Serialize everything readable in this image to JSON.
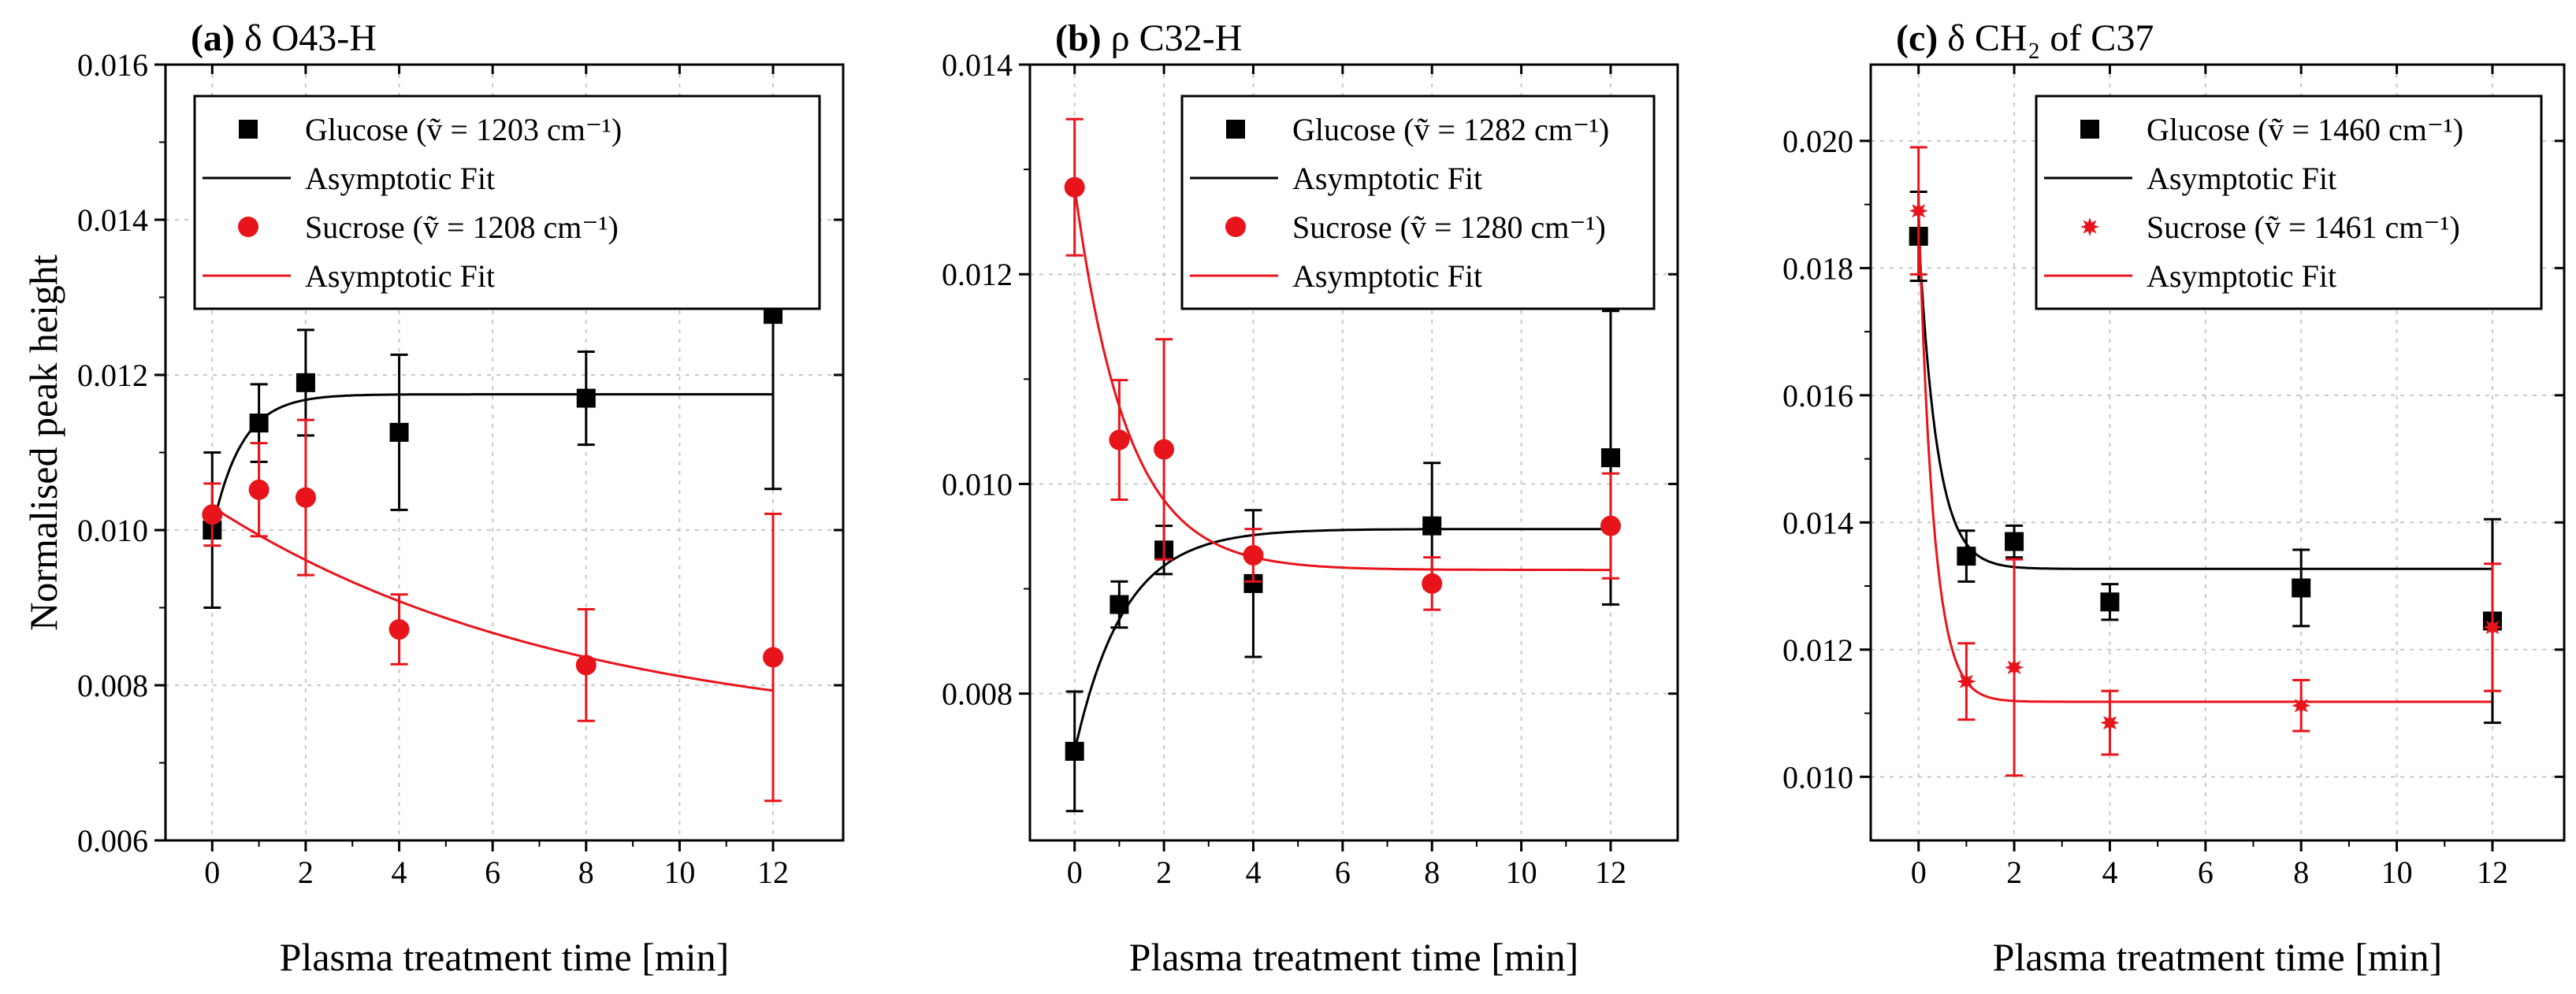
{
  "figure": {
    "ylabel": "Normalised peak height"
  },
  "chart_data": [
    {
      "type": "scatter",
      "panel": "a",
      "title_letter": "(a)",
      "title_rest": "δ O43-H",
      "xlabel": "Plasma treatment time [min]",
      "ylabel": "Normalised peak height",
      "xlim": [
        -1,
        13.5
      ],
      "ylim": [
        0.006,
        0.016
      ],
      "xticks": [
        0,
        2,
        4,
        6,
        8,
        10,
        12
      ],
      "yticks": [
        0.006,
        0.008,
        0.01,
        0.012,
        0.014,
        0.016
      ],
      "ytick_labels": [
        "0.006",
        "0.008",
        "0.010",
        "0.012",
        "0.014",
        "0.016"
      ],
      "legend_position": "top-right",
      "series": [
        {
          "name": "Glucose",
          "legend_label": "Glucose (ṽ = 1203 cm⁻¹)",
          "marker": "square",
          "color": "#000000",
          "x": [
            0,
            1,
            2,
            4,
            8,
            12
          ],
          "y": [
            0.01,
            0.01138,
            0.0119,
            0.01126,
            0.0117,
            0.01278
          ],
          "err": [
            0.001,
            0.0005,
            0.00068,
            0.001,
            0.0006,
            0.00225
          ]
        },
        {
          "name": "Sucrose",
          "legend_label": "Sucrose (ṽ = 1208 cm⁻¹)",
          "marker": "circle",
          "color": "#e8141b",
          "x": [
            0,
            1,
            2,
            4,
            8,
            12
          ],
          "y": [
            0.0102,
            0.01052,
            0.01042,
            0.00872,
            0.00826,
            0.00836
          ],
          "err": [
            0.0004,
            0.0006,
            0.001,
            0.00045,
            0.00072,
            0.00185
          ]
        }
      ],
      "fits": [
        {
          "name": "Asymptotic Fit",
          "legend_label": "Asymptotic Fit",
          "color": "#000000",
          "model": "a - b*exp(-k*x)",
          "a": 0.01175,
          "b": 0.00175,
          "k": 1.6
        },
        {
          "name": "Asymptotic Fit",
          "legend_label": "Asymptotic Fit",
          "color": "#e8141b",
          "model": "a - b*exp(-k*x)",
          "a": 0.0073,
          "b": -0.003,
          "k": 0.13
        }
      ]
    },
    {
      "type": "scatter",
      "panel": "b",
      "title_letter": "(b)",
      "title_rest": "ρ C32-H",
      "xlabel": "Plasma treatment time [min]",
      "ylabel": "",
      "xlim": [
        -1,
        13.5
      ],
      "ylim": [
        0.0066,
        0.014
      ],
      "xticks": [
        0,
        2,
        4,
        6,
        8,
        10,
        12
      ],
      "yticks": [
        0.008,
        0.01,
        0.012,
        0.014
      ],
      "ytick_labels": [
        "0.008",
        "0.010",
        "0.012",
        "0.014"
      ],
      "legend_position": "top-right",
      "series": [
        {
          "name": "Glucose",
          "legend_label": "Glucose (ṽ = 1282 cm⁻¹)",
          "marker": "square",
          "color": "#000000",
          "x": [
            0,
            1,
            2,
            4,
            8,
            12
          ],
          "y": [
            0.00745,
            0.00885,
            0.00937,
            0.00905,
            0.0096,
            0.01025
          ],
          "err": [
            0.00057,
            0.00022,
            0.00023,
            0.0007,
            0.0006,
            0.0014
          ]
        },
        {
          "name": "Sucrose",
          "legend_label": "Sucrose (ṽ = 1280 cm⁻¹)",
          "marker": "circle",
          "color": "#e8141b",
          "x": [
            0,
            1,
            2,
            4,
            8,
            12
          ],
          "y": [
            0.01283,
            0.01042,
            0.01033,
            0.00932,
            0.00905,
            0.0096
          ],
          "err": [
            0.00065,
            0.00057,
            0.00105,
            0.00025,
            0.00025,
            0.0005
          ]
        }
      ],
      "fits": [
        {
          "name": "Asymptotic Fit",
          "legend_label": "Asymptotic Fit",
          "color": "#000000",
          "model": "a - b*exp(-k*x)",
          "a": 0.00957,
          "b": 0.00212,
          "k": 0.9
        },
        {
          "name": "Asymptotic Fit",
          "legend_label": "Asymptotic Fit",
          "color": "#e8141b",
          "model": "a - b*exp(-k*x)",
          "a": 0.00918,
          "b": -0.00365,
          "k": 0.85
        }
      ]
    },
    {
      "type": "scatter",
      "panel": "c",
      "title_letter": "(c)",
      "title_rest": "δ CH₂ of C37",
      "xlabel": "Plasma treatment time [min]",
      "ylabel": "",
      "xlim": [
        -1,
        13.5
      ],
      "ylim": [
        0.009,
        0.0212
      ],
      "xticks": [
        0,
        2,
        4,
        6,
        8,
        10,
        12
      ],
      "yticks": [
        0.01,
        0.012,
        0.014,
        0.016,
        0.018,
        0.02
      ],
      "ytick_labels": [
        "0.010",
        "0.012",
        "0.014",
        "0.016",
        "0.018",
        "0.020"
      ],
      "legend_position": "top-right",
      "series": [
        {
          "name": "Glucose",
          "legend_label": "Glucose (ṽ = 1460 cm⁻¹)",
          "marker": "square",
          "color": "#000000",
          "x": [
            0,
            1,
            2,
            4,
            8,
            12
          ],
          "y": [
            0.0185,
            0.01347,
            0.0137,
            0.01275,
            0.01297,
            0.01245
          ],
          "err": [
            0.0007,
            0.0004,
            0.00025,
            0.00028,
            0.0006,
            0.0016
          ]
        },
        {
          "name": "Sucrose",
          "legend_label": "Sucrose (ṽ = 1461 cm⁻¹)",
          "marker": "star",
          "color": "#e8141b",
          "x": [
            0,
            1,
            2,
            4,
            8,
            12
          ],
          "y": [
            0.0189,
            0.0115,
            0.01172,
            0.01085,
            0.01112,
            0.01235
          ],
          "err": [
            0.001,
            0.0006,
            0.0017,
            0.0005,
            0.0004,
            0.001
          ]
        }
      ],
      "fits": [
        {
          "name": "Asymptotic Fit",
          "legend_label": "Asymptotic Fit",
          "color": "#000000",
          "model": "a - b*exp(-k*x)",
          "a": 0.01327,
          "b": -0.0053,
          "k": 2.6
        },
        {
          "name": "Asymptotic Fit",
          "legend_label": "Asymptotic Fit",
          "color": "#e8141b",
          "model": "a - b*exp(-k*x)",
          "a": 0.01118,
          "b": -0.0078,
          "k": 3.2
        }
      ]
    }
  ]
}
